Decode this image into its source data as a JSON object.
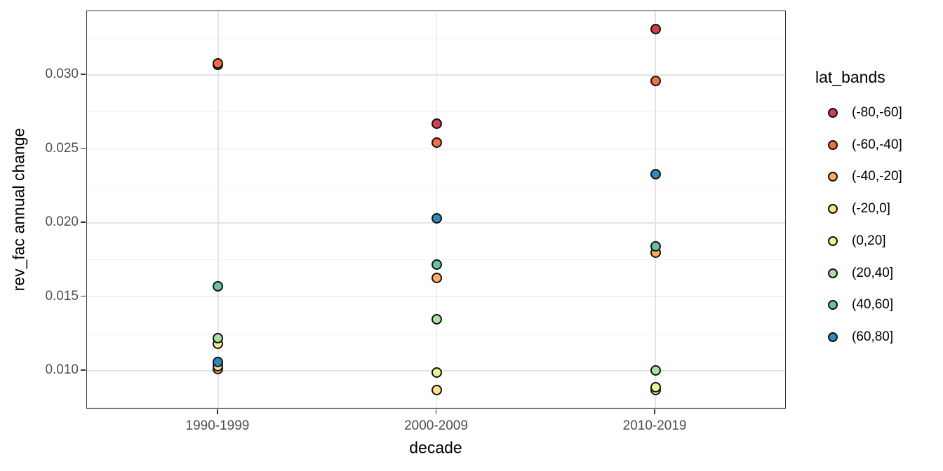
{
  "figure": {
    "background": "#ffffff",
    "panel_border_color": "#333333",
    "grid_major_color": "#e3e3e3",
    "grid_minor_color": "#f0f0f0",
    "tick_label_color": "#4d4d4d",
    "title_color": "#000000",
    "point_stroke_color": "#111111"
  },
  "chart_data": {
    "type": "scatter",
    "title": "",
    "xlabel": "decade",
    "ylabel": "rev_fac annual change",
    "categories": [
      "1990-1999",
      "2000-2009",
      "2010-2019"
    ],
    "y_ticks": [
      0.01,
      0.015,
      0.02,
      0.025,
      0.03
    ],
    "y_tick_labels": [
      "0.010",
      "0.015",
      "0.020",
      "0.025",
      "0.030"
    ],
    "y_minor_ticks": [
      0.0075,
      0.0125,
      0.0175,
      0.0225,
      0.0275,
      0.0325
    ],
    "ylim": [
      0.00739,
      0.03431
    ],
    "grid": true,
    "legend_title": "lat_bands",
    "legend_position": "right",
    "series": [
      {
        "name": "(-80,-60]",
        "color": "#D53E4F",
        "values": [
          0.0307,
          0.0267,
          0.0331
        ]
      },
      {
        "name": "(-60,-40]",
        "color": "#F46D43",
        "values": [
          0.0308,
          0.0254,
          0.0296
        ]
      },
      {
        "name": "(-40,-20]",
        "color": "#FDAE61",
        "values": [
          0.0101,
          0.0163,
          0.018
        ]
      },
      {
        "name": "(-20,0]",
        "color": "#FEE08B",
        "values": [
          0.0103,
          0.0087,
          0.0087
        ]
      },
      {
        "name": "(0,20]",
        "color": "#E6F598",
        "values": [
          0.0118,
          0.0099,
          0.0089
        ]
      },
      {
        "name": "(20,40]",
        "color": "#ABDDA4",
        "values": [
          0.0122,
          0.0135,
          0.01
        ]
      },
      {
        "name": "(40,60]",
        "color": "#66C2A5",
        "values": [
          0.0157,
          0.0172,
          0.0184
        ]
      },
      {
        "name": "(60,80]",
        "color": "#3288BD",
        "values": [
          0.0106,
          0.0203,
          0.0233
        ]
      }
    ]
  }
}
